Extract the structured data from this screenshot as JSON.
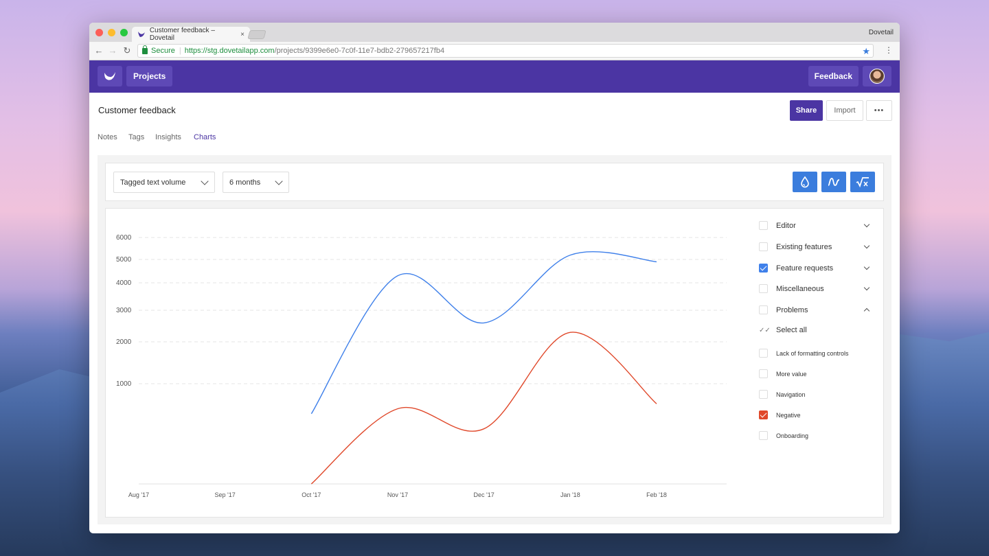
{
  "browser": {
    "tab_title": "Customer feedback – Dovetail",
    "tab_close": "×",
    "profile_name": "Dovetail",
    "secure_label": "Secure",
    "url_scheme_host": "https://stg.dovetailapp.com",
    "url_path": "/projects/9399e6e0-7c0f-11e7-bdb2-279657217fb4"
  },
  "header": {
    "projects_label": "Projects",
    "feedback_label": "Feedback"
  },
  "page": {
    "title": "Customer feedback",
    "share_label": "Share",
    "import_label": "Import",
    "more_label": "•••",
    "tabs": [
      {
        "label": "Notes"
      },
      {
        "label": "Tags"
      },
      {
        "label": "Insights"
      },
      {
        "label": "Charts"
      }
    ],
    "active_tab": "Charts"
  },
  "toolbar": {
    "metric_select": "Tagged text volume",
    "period_select": "6 months"
  },
  "legend": {
    "groups": [
      {
        "label": "Editor",
        "checked": false,
        "expanded": false
      },
      {
        "label": "Existing features",
        "checked": false,
        "expanded": false
      },
      {
        "label": "Feature requests",
        "checked": true,
        "expanded": false
      },
      {
        "label": "Miscellaneous",
        "checked": false,
        "expanded": false
      },
      {
        "label": "Problems",
        "checked": false,
        "expanded": true
      }
    ],
    "select_all_label": "Select all",
    "subitems": [
      {
        "label": "Lack of formatting controls",
        "checked": false
      },
      {
        "label": "More value",
        "checked": false
      },
      {
        "label": "Navigation",
        "checked": false
      },
      {
        "label": "Negative",
        "checked": true
      },
      {
        "label": "Onboarding",
        "checked": false
      }
    ]
  },
  "colors": {
    "brand": "#4b35a3",
    "accent_blue": "#3b7ddd",
    "series_blue": "#3f80ea",
    "series_red": "#e0482a"
  },
  "chart_data": {
    "type": "line",
    "x": [
      "Aug '17",
      "Sep '17",
      "Oct '17",
      "Nov '17",
      "Dec '17",
      "Jan '18",
      "Feb '18"
    ],
    "yticks": [
      1000,
      2000,
      3000,
      4000,
      5000,
      6000
    ],
    "grid": true,
    "series": [
      {
        "name": "Feature requests",
        "color": "#3f80ea",
        "values": [
          null,
          null,
          700,
          4300,
          2600,
          5200,
          4900
        ]
      },
      {
        "name": "Negative",
        "color": "#e0482a",
        "values": [
          null,
          null,
          0,
          750,
          550,
          2300,
          800
        ]
      }
    ]
  }
}
